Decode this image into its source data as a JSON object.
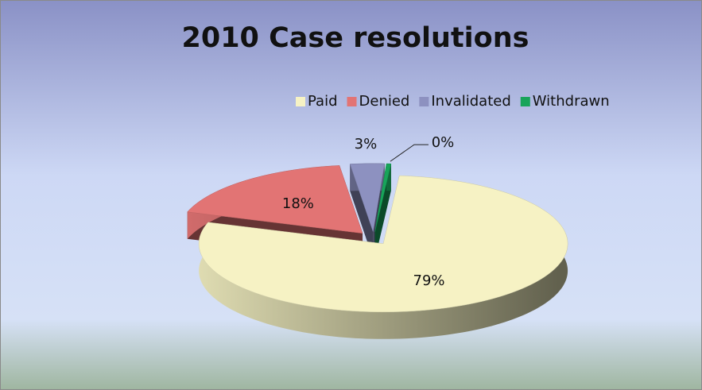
{
  "chart_data": {
    "type": "pie",
    "title": "2010 Case resolutions",
    "categories": [
      "Paid",
      "Denied",
      "Invalidated",
      "Withdrawn"
    ],
    "values": [
      79,
      18,
      3,
      0.4
    ],
    "value_labels": [
      "79%",
      "18%",
      "3%",
      "0%"
    ],
    "colors": [
      "#f6f2c4",
      "#e27474",
      "#8d91c0",
      "#18a45a"
    ],
    "legend": "top"
  }
}
